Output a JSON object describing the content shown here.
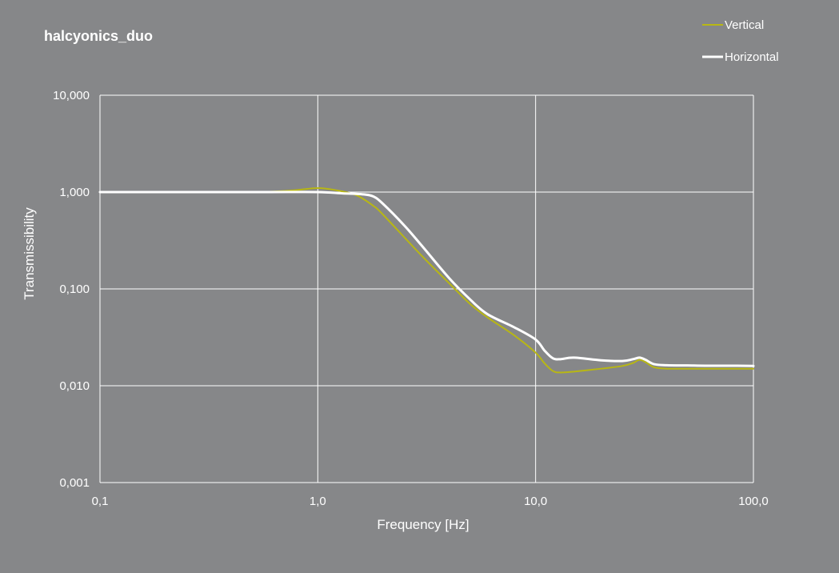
{
  "chart_data": {
    "type": "line",
    "title": "halcyonics_duo",
    "xlabel": "Frequency  [Hz]",
    "ylabel": "Transmissibility",
    "x_scale": "log",
    "y_scale": "log",
    "xlim": [
      0.1,
      100
    ],
    "ylim": [
      0.001,
      10
    ],
    "x_ticks": [
      0.1,
      1,
      10,
      100
    ],
    "x_tick_labels": [
      "0,1",
      "1,0",
      "10,0",
      "100,0"
    ],
    "y_ticks": [
      0.001,
      0.01,
      0.1,
      1,
      10
    ],
    "y_tick_labels": [
      "0,001",
      "0,010",
      "0,100",
      "1,000",
      "10,000"
    ],
    "grid": true,
    "legend_position": "top-right",
    "series": [
      {
        "name": "Vertical",
        "color": "#b8b714",
        "x": [
          0.1,
          0.3,
          0.6,
          0.8,
          1.0,
          1.2,
          1.5,
          1.8,
          2.0,
          3.0,
          4.0,
          5.0,
          6.0,
          8.0,
          10.0,
          11.0,
          12.0,
          13.0,
          15.0,
          20.0,
          25.0,
          28.0,
          30.0,
          32.0,
          35.0,
          40.0,
          50.0,
          60.0,
          80.0,
          100.0
        ],
        "y": [
          1.0,
          1.0,
          1.01,
          1.05,
          1.1,
          1.05,
          0.93,
          0.72,
          0.58,
          0.22,
          0.115,
          0.07,
          0.051,
          0.033,
          0.022,
          0.017,
          0.0142,
          0.0137,
          0.014,
          0.015,
          0.016,
          0.0172,
          0.0185,
          0.0175,
          0.0155,
          0.015,
          0.015,
          0.015,
          0.015,
          0.015
        ]
      },
      {
        "name": "Horizontal",
        "color": "#ffffff",
        "x": [
          0.1,
          0.3,
          0.6,
          1.0,
          1.3,
          1.6,
          1.8,
          2.0,
          2.5,
          3.0,
          4.0,
          5.0,
          6.0,
          8.0,
          10.0,
          11.0,
          12.0,
          13.0,
          15.0,
          20.0,
          25.0,
          28.0,
          30.0,
          32.0,
          35.0,
          40.0,
          50.0,
          60.0,
          80.0,
          100.0
        ],
        "y": [
          1.0,
          1.0,
          1.0,
          1.0,
          0.97,
          0.95,
          0.9,
          0.75,
          0.45,
          0.28,
          0.13,
          0.078,
          0.055,
          0.04,
          0.03,
          0.023,
          0.0192,
          0.0188,
          0.0195,
          0.0183,
          0.018,
          0.0188,
          0.0195,
          0.0185,
          0.0167,
          0.0163,
          0.0162,
          0.0161,
          0.0161,
          0.016
        ]
      }
    ]
  }
}
